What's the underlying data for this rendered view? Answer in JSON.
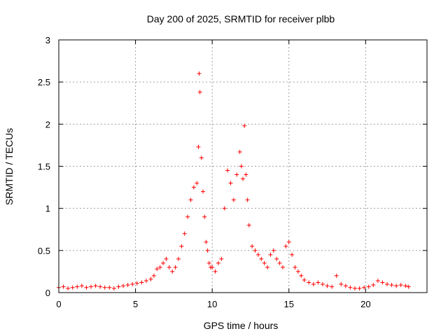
{
  "chart_data": {
    "type": "scatter",
    "title": "Day 200 of 2025, SRMTID for receiver plbb",
    "xlabel": "GPS time / hours",
    "ylabel": "SRMTID / TECUs",
    "xlim": [
      0,
      24
    ],
    "ylim": [
      0,
      3
    ],
    "xticks": [
      0,
      5,
      10,
      15,
      20
    ],
    "yticks": [
      0,
      0.5,
      1,
      1.5,
      2,
      2.5,
      3
    ],
    "xtick_labels": [
      "0",
      "5",
      "10",
      "15",
      "20"
    ],
    "ytick_labels": [
      "0",
      "0.5",
      "1",
      "1.5",
      "2",
      "2.5",
      "3"
    ],
    "grid": true,
    "marker": "+",
    "colors": {
      "series": "#ff0000",
      "grid": "#a0a0a0",
      "axis": "#000000"
    },
    "series": [
      {
        "name": "plbb",
        "x": [
          0.0,
          0.3,
          0.6,
          0.9,
          1.2,
          1.5,
          1.8,
          2.1,
          2.4,
          2.7,
          3.0,
          3.3,
          3.6,
          3.9,
          4.2,
          4.5,
          4.8,
          5.1,
          5.4,
          5.7,
          6.0,
          6.2,
          6.4,
          6.6,
          6.8,
          7.0,
          7.2,
          7.4,
          7.6,
          7.8,
          8.0,
          8.2,
          8.4,
          8.6,
          8.8,
          9.0,
          9.1,
          9.15,
          9.2,
          9.3,
          9.4,
          9.5,
          9.6,
          9.7,
          9.8,
          9.9,
          10.0,
          10.2,
          10.4,
          10.6,
          10.8,
          11.0,
          11.2,
          11.4,
          11.6,
          11.8,
          11.9,
          12.0,
          12.1,
          12.2,
          12.3,
          12.4,
          12.6,
          12.8,
          13.0,
          13.2,
          13.4,
          13.6,
          13.8,
          14.0,
          14.2,
          14.4,
          14.6,
          14.8,
          15.0,
          15.2,
          15.4,
          15.6,
          15.8,
          16.0,
          16.3,
          16.6,
          16.9,
          17.2,
          17.5,
          17.8,
          18.1,
          18.4,
          18.7,
          19.0,
          19.3,
          19.6,
          19.9,
          20.2,
          20.5,
          20.8,
          21.1,
          21.4,
          21.7,
          22.0,
          22.3,
          22.6,
          22.8
        ],
        "y": [
          0.06,
          0.07,
          0.05,
          0.06,
          0.07,
          0.08,
          0.06,
          0.07,
          0.08,
          0.07,
          0.06,
          0.06,
          0.05,
          0.07,
          0.08,
          0.09,
          0.1,
          0.11,
          0.12,
          0.14,
          0.16,
          0.2,
          0.28,
          0.3,
          0.35,
          0.4,
          0.3,
          0.25,
          0.3,
          0.4,
          0.55,
          0.7,
          0.9,
          1.1,
          1.25,
          1.3,
          1.73,
          2.6,
          2.38,
          1.6,
          1.2,
          0.9,
          0.6,
          0.5,
          0.35,
          0.3,
          0.3,
          0.25,
          0.35,
          0.4,
          1.0,
          1.45,
          1.3,
          1.1,
          1.4,
          1.67,
          1.5,
          1.35,
          1.98,
          1.4,
          1.1,
          0.8,
          0.55,
          0.5,
          0.45,
          0.4,
          0.35,
          0.3,
          0.45,
          0.5,
          0.4,
          0.35,
          0.3,
          0.55,
          0.6,
          0.45,
          0.3,
          0.25,
          0.2,
          0.15,
          0.12,
          0.1,
          0.12,
          0.1,
          0.08,
          0.07,
          0.2,
          0.1,
          0.08,
          0.06,
          0.05,
          0.05,
          0.06,
          0.07,
          0.09,
          0.14,
          0.12,
          0.1,
          0.09,
          0.08,
          0.09,
          0.08,
          0.07
        ]
      }
    ]
  }
}
